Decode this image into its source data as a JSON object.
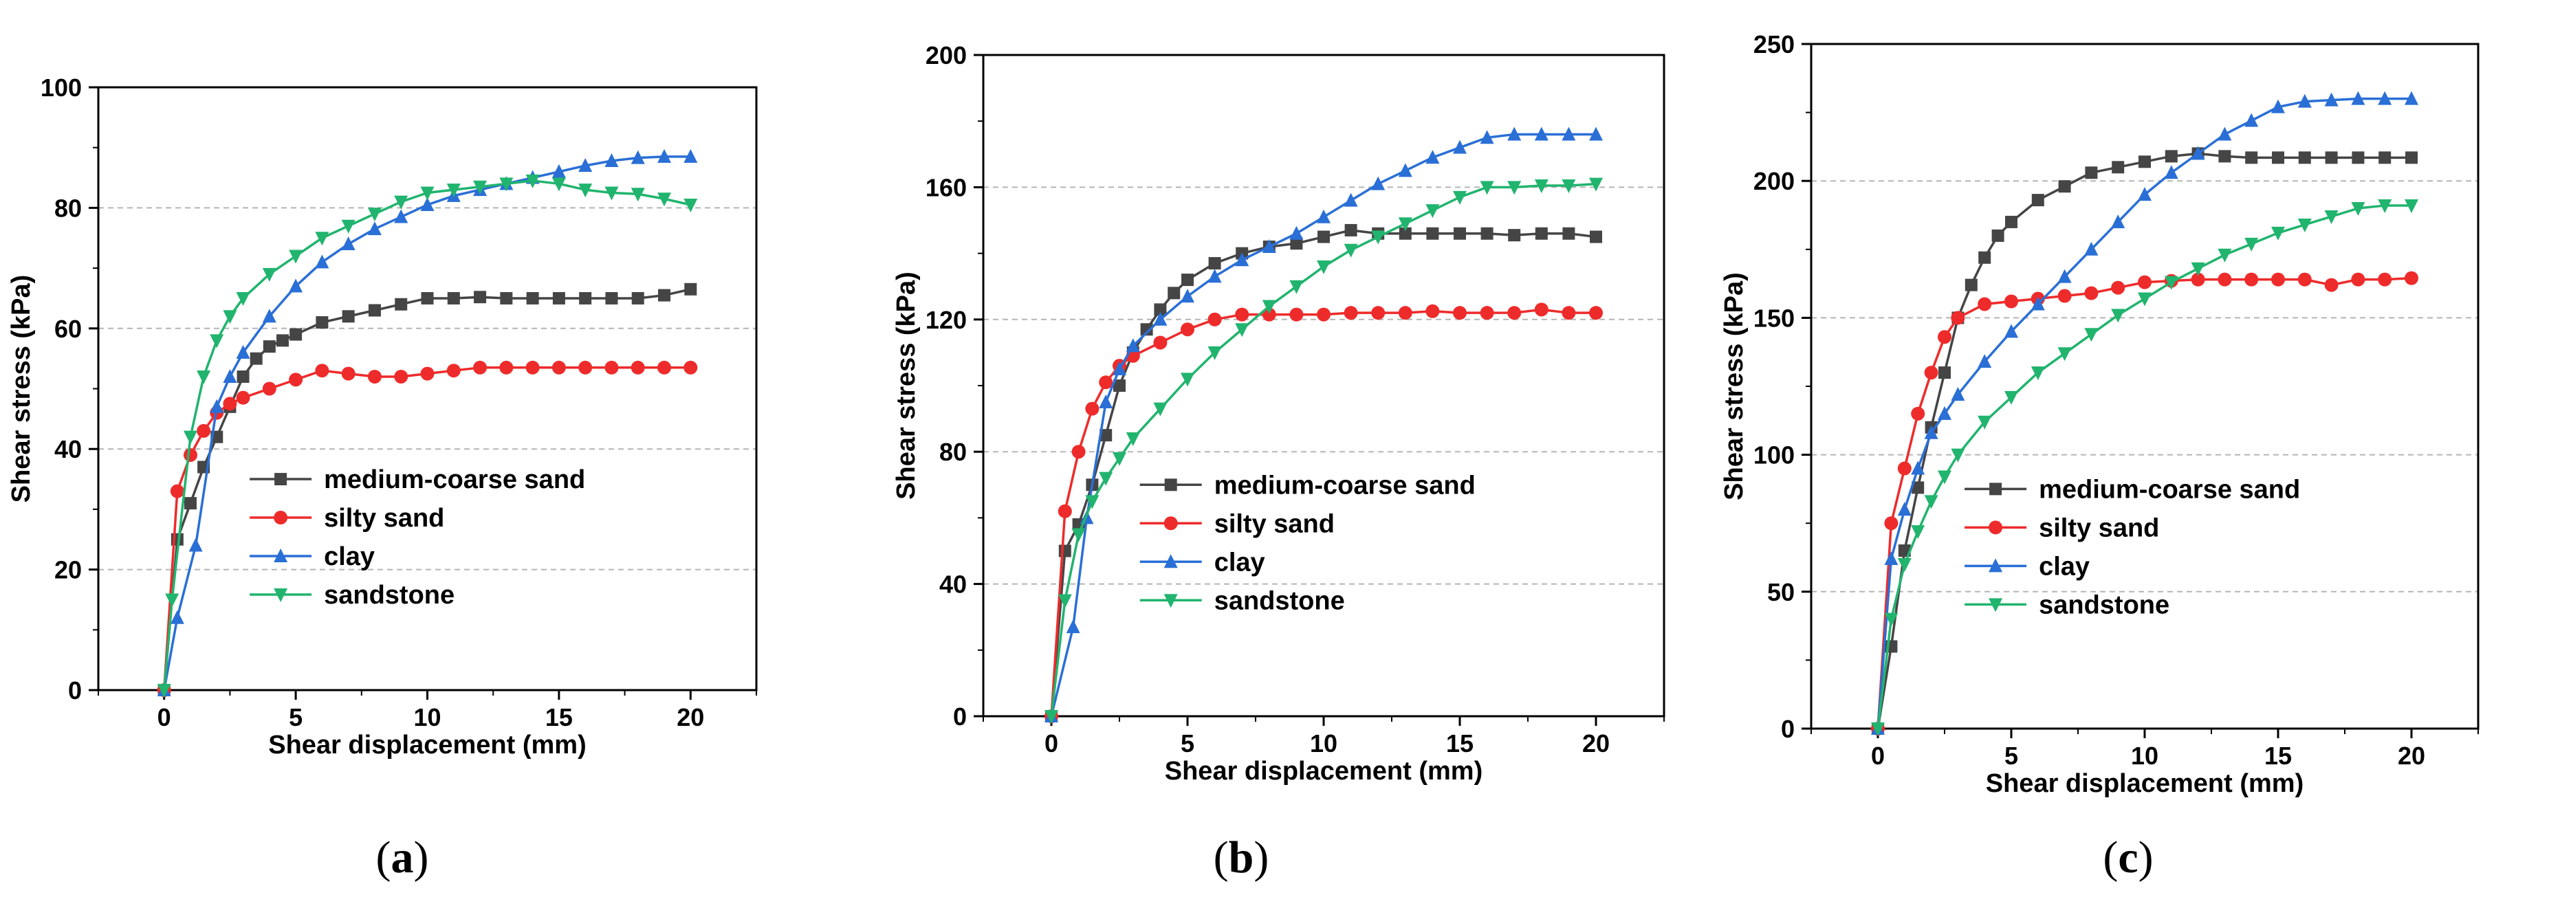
{
  "colors": {
    "medium_coarse_sand": "#454545",
    "silty_sand": "#ee2b2b",
    "clay": "#2a6fd6",
    "sandstone": "#21b46e"
  },
  "panels": [
    {
      "caption_open": "(",
      "caption_letter": "a",
      "caption_close": ")"
    },
    {
      "caption_open": "(",
      "caption_letter": "b",
      "caption_close": ")"
    },
    {
      "caption_open": "(",
      "caption_letter": "c",
      "caption_close": ")"
    }
  ],
  "chart_data": [
    {
      "type": "line",
      "xlabel": "Shear displacement (mm)",
      "ylabel": "Shear stress (kPa)",
      "xlim": [
        -2.5,
        22.5
      ],
      "ylim": [
        0,
        100
      ],
      "xticks": [
        0,
        5,
        10,
        15,
        20
      ],
      "yticks": [
        0,
        20,
        40,
        60,
        80,
        100
      ],
      "grid": "horizontal dashed",
      "legend": "bottom-right",
      "series": [
        {
          "name": "medium-coarse sand",
          "color_key": "medium_coarse_sand",
          "marker": "square",
          "x": [
            0,
            0.5,
            1,
            1.5,
            2,
            2.5,
            3,
            3.5,
            4,
            4.5,
            5,
            6,
            7,
            8,
            9,
            10,
            11,
            12,
            13,
            14,
            15,
            16,
            17,
            18,
            19,
            20
          ],
          "y": [
            0,
            25,
            31,
            37,
            42,
            47,
            52,
            55,
            57,
            58,
            59,
            61,
            62,
            63,
            64,
            65,
            65,
            65.2,
            65,
            65,
            65,
            65,
            65,
            65,
            65.5,
            66.5
          ]
        },
        {
          "name": "silty sand",
          "color_key": "silty_sand",
          "marker": "circle",
          "x": [
            0,
            0.5,
            1,
            1.5,
            2,
            2.5,
            3,
            4,
            5,
            6,
            7,
            8,
            9,
            10,
            11,
            12,
            13,
            14,
            15,
            16,
            17,
            18,
            19,
            20
          ],
          "y": [
            0,
            33,
            39,
            43,
            46,
            47.5,
            48.5,
            50,
            51.5,
            53,
            52.5,
            52,
            52,
            52.5,
            53,
            53.5,
            53.5,
            53.5,
            53.5,
            53.5,
            53.5,
            53.5,
            53.5,
            53.5
          ]
        },
        {
          "name": "clay",
          "color_key": "clay",
          "marker": "triangle-up",
          "x": [
            0,
            0.5,
            1.2,
            2,
            2.5,
            3,
            4,
            5,
            6,
            7,
            8,
            9,
            10,
            11,
            12,
            13,
            14,
            15,
            16,
            17,
            18,
            19,
            20
          ],
          "y": [
            0,
            12,
            24,
            47,
            52,
            56,
            62,
            67,
            71,
            74,
            76.5,
            78.5,
            80.5,
            82,
            83,
            84,
            85,
            86,
            87,
            87.8,
            88.3,
            88.5,
            88.5
          ]
        },
        {
          "name": "sandstone",
          "color_key": "sandstone",
          "marker": "triangle-down",
          "x": [
            0,
            0.3,
            1,
            1.5,
            2,
            2.5,
            3,
            4,
            5,
            6,
            7,
            8,
            9,
            10,
            11,
            12,
            13,
            14,
            15,
            16,
            17,
            18,
            19,
            20
          ],
          "y": [
            0,
            15,
            42,
            52,
            58,
            62,
            65,
            69,
            72,
            75,
            77,
            79,
            81,
            82.5,
            83,
            83.5,
            84,
            84.5,
            84,
            83,
            82.5,
            82.3,
            81.5,
            80.5
          ]
        }
      ]
    },
    {
      "type": "line",
      "xlabel": "Shear displacement (mm)",
      "ylabel": "Shear stress (kPa)",
      "xlim": [
        -2.5,
        22.5
      ],
      "ylim": [
        0,
        200
      ],
      "xticks": [
        0,
        5,
        10,
        15,
        20
      ],
      "yticks": [
        0,
        40,
        80,
        120,
        160,
        200
      ],
      "grid": "horizontal dashed",
      "legend": "bottom-right",
      "series": [
        {
          "name": "medium-coarse sand",
          "color_key": "medium_coarse_sand",
          "marker": "square",
          "x": [
            0,
            0.5,
            1,
            1.5,
            2,
            2.5,
            3,
            3.5,
            4,
            4.5,
            5,
            6,
            7,
            8,
            9,
            10,
            11,
            12,
            13,
            14,
            15,
            16,
            17,
            18,
            19,
            20
          ],
          "y": [
            0,
            50,
            58,
            70,
            85,
            100,
            110,
            117,
            123,
            128,
            132,
            137,
            140,
            142,
            143,
            145,
            147,
            146,
            146,
            146,
            146,
            146,
            145.5,
            146,
            146,
            145
          ]
        },
        {
          "name": "silty sand",
          "color_key": "silty_sand",
          "marker": "circle",
          "x": [
            0,
            0.5,
            1,
            1.5,
            2,
            2.5,
            3,
            4,
            5,
            6,
            7,
            8,
            9,
            10,
            11,
            12,
            13,
            14,
            15,
            16,
            17,
            18,
            19,
            20
          ],
          "y": [
            0,
            62,
            80,
            93,
            101,
            106,
            109,
            113,
            117,
            120,
            121.5,
            121.5,
            121.5,
            121.5,
            122,
            122,
            122,
            122.5,
            122,
            122,
            122,
            123,
            122,
            122
          ]
        },
        {
          "name": "clay",
          "color_key": "clay",
          "marker": "triangle-up",
          "x": [
            0,
            0.8,
            1.3,
            2,
            2.5,
            3,
            4,
            5,
            6,
            7,
            8,
            9,
            10,
            11,
            12,
            13,
            14,
            15,
            16,
            17,
            18,
            19,
            20
          ],
          "y": [
            0,
            27,
            60,
            95,
            105,
            112,
            120,
            127,
            133,
            138,
            142,
            146,
            151,
            156,
            161,
            165,
            169,
            172,
            175,
            176,
            176,
            176,
            176
          ]
        },
        {
          "name": "sandstone",
          "color_key": "sandstone",
          "marker": "triangle-down",
          "x": [
            0,
            0.5,
            1,
            1.5,
            2,
            2.5,
            3,
            4,
            5,
            6,
            7,
            8,
            9,
            10,
            11,
            12,
            13,
            14,
            15,
            16,
            17,
            18,
            19,
            20
          ],
          "y": [
            0,
            35,
            55,
            65,
            72,
            78,
            84,
            93,
            102,
            110,
            117,
            124,
            130,
            136,
            141,
            145,
            149,
            153,
            157,
            160,
            160,
            160.5,
            160.5,
            161
          ]
        }
      ]
    },
    {
      "type": "line",
      "xlabel": "Shear displacement (mm)",
      "ylabel": "Shear stress (kPa)",
      "xlim": [
        -2.5,
        22.5
      ],
      "ylim": [
        0,
        250
      ],
      "xticks": [
        0,
        5,
        10,
        15,
        20
      ],
      "yticks": [
        0,
        50,
        100,
        150,
        200,
        250
      ],
      "grid": "horizontal dashed",
      "legend": "bottom-right",
      "series": [
        {
          "name": "medium-coarse sand",
          "color_key": "medium_coarse_sand",
          "marker": "square",
          "x": [
            0,
            0.5,
            1,
            1.5,
            2,
            2.5,
            3,
            3.5,
            4,
            4.5,
            5,
            6,
            7,
            8,
            9,
            10,
            11,
            12,
            13,
            14,
            15,
            16,
            17,
            18,
            19,
            20
          ],
          "y": [
            0,
            30,
            65,
            88,
            110,
            130,
            150,
            162,
            172,
            180,
            185,
            193,
            198,
            203,
            205,
            207,
            209,
            210,
            209,
            208.5,
            208.5,
            208.5,
            208.5,
            208.5,
            208.5,
            208.5
          ]
        },
        {
          "name": "silty sand",
          "color_key": "silty_sand",
          "marker": "circle",
          "x": [
            0,
            0.5,
            1,
            1.5,
            2,
            2.5,
            3,
            4,
            5,
            6,
            7,
            8,
            9,
            10,
            11,
            12,
            13,
            14,
            15,
            16,
            17,
            18,
            19,
            20
          ],
          "y": [
            0,
            75,
            95,
            115,
            130,
            143,
            150,
            155,
            156,
            157,
            158,
            159,
            161,
            163,
            163.5,
            164,
            164,
            164,
            164,
            164,
            162,
            164,
            164,
            164.5
          ]
        },
        {
          "name": "clay",
          "color_key": "clay",
          "marker": "triangle-up",
          "x": [
            0,
            0.5,
            1,
            1.5,
            2,
            2.5,
            3,
            4,
            5,
            6,
            7,
            8,
            9,
            10,
            11,
            12,
            13,
            14,
            15,
            16,
            17,
            18,
            19,
            20
          ],
          "y": [
            0,
            62,
            80,
            95,
            108,
            115,
            122,
            134,
            145,
            155,
            165,
            175,
            185,
            195,
            203,
            210,
            217,
            222,
            227,
            229,
            229.5,
            230,
            230,
            230
          ]
        },
        {
          "name": "sandstone",
          "color_key": "sandstone",
          "marker": "triangle-down",
          "x": [
            0,
            0.5,
            1,
            1.5,
            2,
            2.5,
            3,
            4,
            5,
            6,
            7,
            8,
            9,
            10,
            11,
            12,
            13,
            14,
            15,
            16,
            17,
            18,
            19,
            20
          ],
          "y": [
            0,
            40,
            60,
            72,
            83,
            92,
            100,
            112,
            121,
            130,
            137,
            144,
            151,
            157,
            163,
            168,
            173,
            177,
            181,
            184,
            187,
            190,
            191,
            191
          ]
        }
      ]
    }
  ]
}
